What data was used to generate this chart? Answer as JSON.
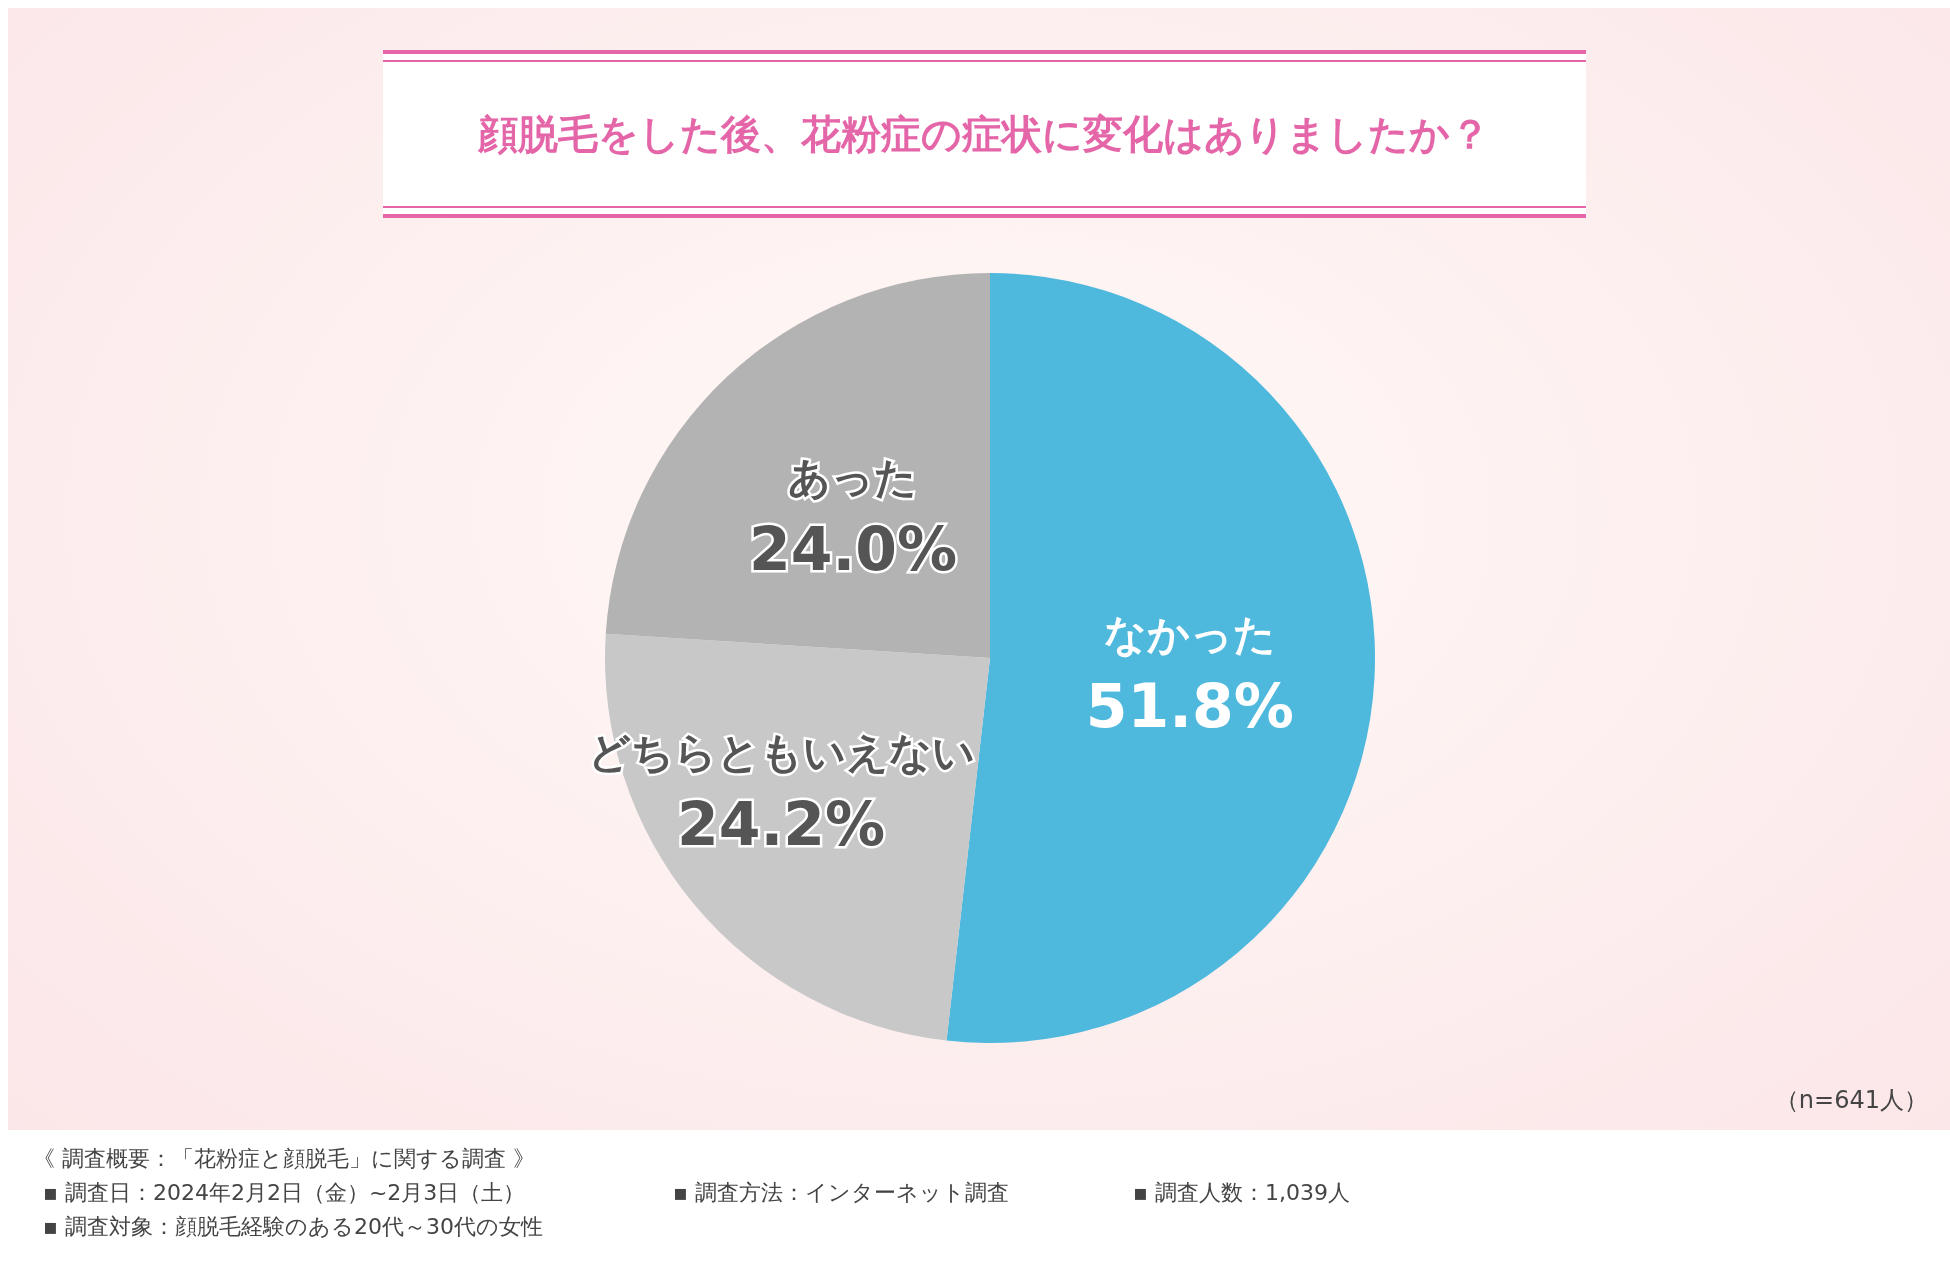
{
  "chart_data": {
    "type": "pie",
    "title": "顔脱毛をした後、花粉症の症状に変化はありましたか？",
    "categories": [
      "なかった",
      "どちらともいえない",
      "あった"
    ],
    "values": [
      51.8,
      24.2,
      24.0
    ],
    "value_labels": [
      "51.8%",
      "24.2%",
      "24.0%"
    ],
    "colors": [
      "#4fb8dd",
      "#c8c8c8",
      "#b3b3b3"
    ],
    "annotations": [
      "（n=641人）",
      "《 調査概要：「花粉症と顔脱毛」に関する調査 》",
      "▪ 調査日：2024年2月2日（金）~2月3日（土）",
      "▪ 調査対象：顔脱毛経験のある20代～30代の女性",
      "▪ 調査方法：インターネット調査",
      "▪ 調査人数：1,039人"
    ]
  }
}
